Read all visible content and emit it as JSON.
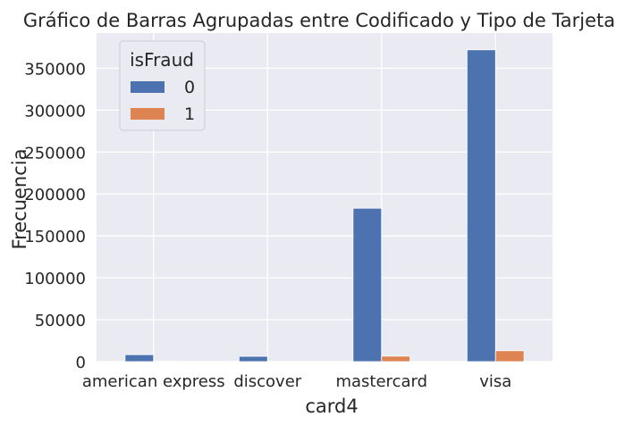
{
  "chart_data": {
    "type": "bar",
    "title": "Gráfico de Barras Agrupadas entre Codificado y Tipo de Tarjeta",
    "xlabel": "card4",
    "ylabel": "Frecuencia",
    "categories": [
      "american express",
      "discover",
      "mastercard",
      "visa"
    ],
    "series": [
      {
        "name": "0",
        "color": "#4c72b0",
        "values": [
          8300,
          6300,
          183000,
          372000
        ]
      },
      {
        "name": "1",
        "color": "#dd8452",
        "values": [
          240,
          150,
          6500,
          13000
        ]
      }
    ],
    "ylim": [
      0,
      392000
    ],
    "yticks": [
      0,
      50000,
      100000,
      150000,
      200000,
      250000,
      300000,
      350000
    ],
    "grid": true,
    "legend": {
      "title": "isFraud",
      "position": "top-left"
    }
  }
}
